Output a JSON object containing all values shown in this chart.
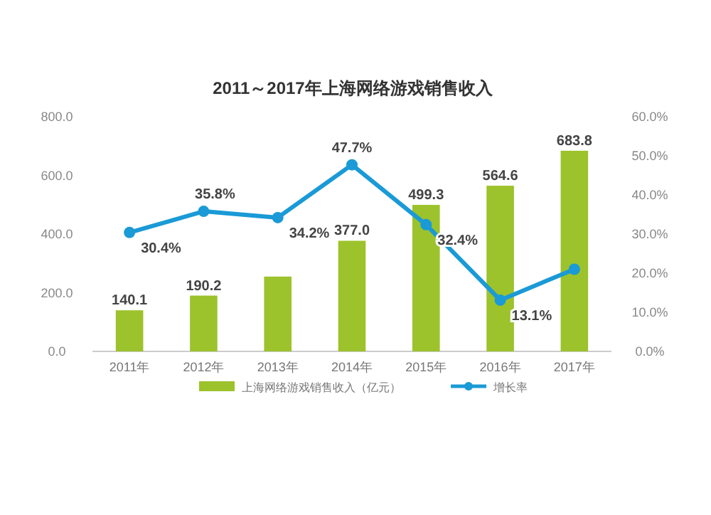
{
  "chart_data": {
    "type": "bar",
    "title": "2011～2017年上海网络游戏销售收入",
    "categories": [
      "2011年",
      "2012年",
      "2013年",
      "2014年",
      "2015年",
      "2016年",
      "2017年"
    ],
    "series": [
      {
        "name": "上海网络游戏销售收入（亿元）",
        "color": "#9cc22c",
        "values": [
          140.1,
          190.2,
          255,
          377.0,
          499.3,
          564.6,
          683.8
        ],
        "value_labels": [
          "140.1",
          "190.2",
          null,
          "377.0",
          "499.3",
          "564.6",
          "683.8"
        ]
      },
      {
        "name": "增长率",
        "type": "line",
        "axis": "y2",
        "color": "#1a9ad6",
        "marker": "circle",
        "values": [
          30.4,
          35.8,
          34.2,
          47.7,
          32.4,
          13.1,
          21
        ],
        "value_labels": [
          "30.4%",
          "35.8%",
          "34.2%",
          "47.7%",
          "32.4%",
          "13.1%",
          null
        ]
      }
    ],
    "ylim": [
      0,
      800
    ],
    "yticks": [
      {
        "value": 0,
        "label": "0.0"
      },
      {
        "value": 200,
        "label": "200.0"
      },
      {
        "value": 400,
        "label": "400.0"
      },
      {
        "value": 600,
        "label": "600.0"
      },
      {
        "value": 800,
        "label": "800.0"
      }
    ],
    "y2lim": [
      0,
      60
    ],
    "y2ticks": [
      {
        "value": 0,
        "label": "0.0%"
      },
      {
        "value": 10,
        "label": "10.0%"
      },
      {
        "value": 20,
        "label": "20.0%"
      },
      {
        "value": 30,
        "label": "30.0%"
      },
      {
        "value": 40,
        "label": "40.0%"
      },
      {
        "value": 50,
        "label": "50.0%"
      },
      {
        "value": 60,
        "label": "60.0%"
      }
    ],
    "grid": false,
    "legend": "bottom"
  }
}
